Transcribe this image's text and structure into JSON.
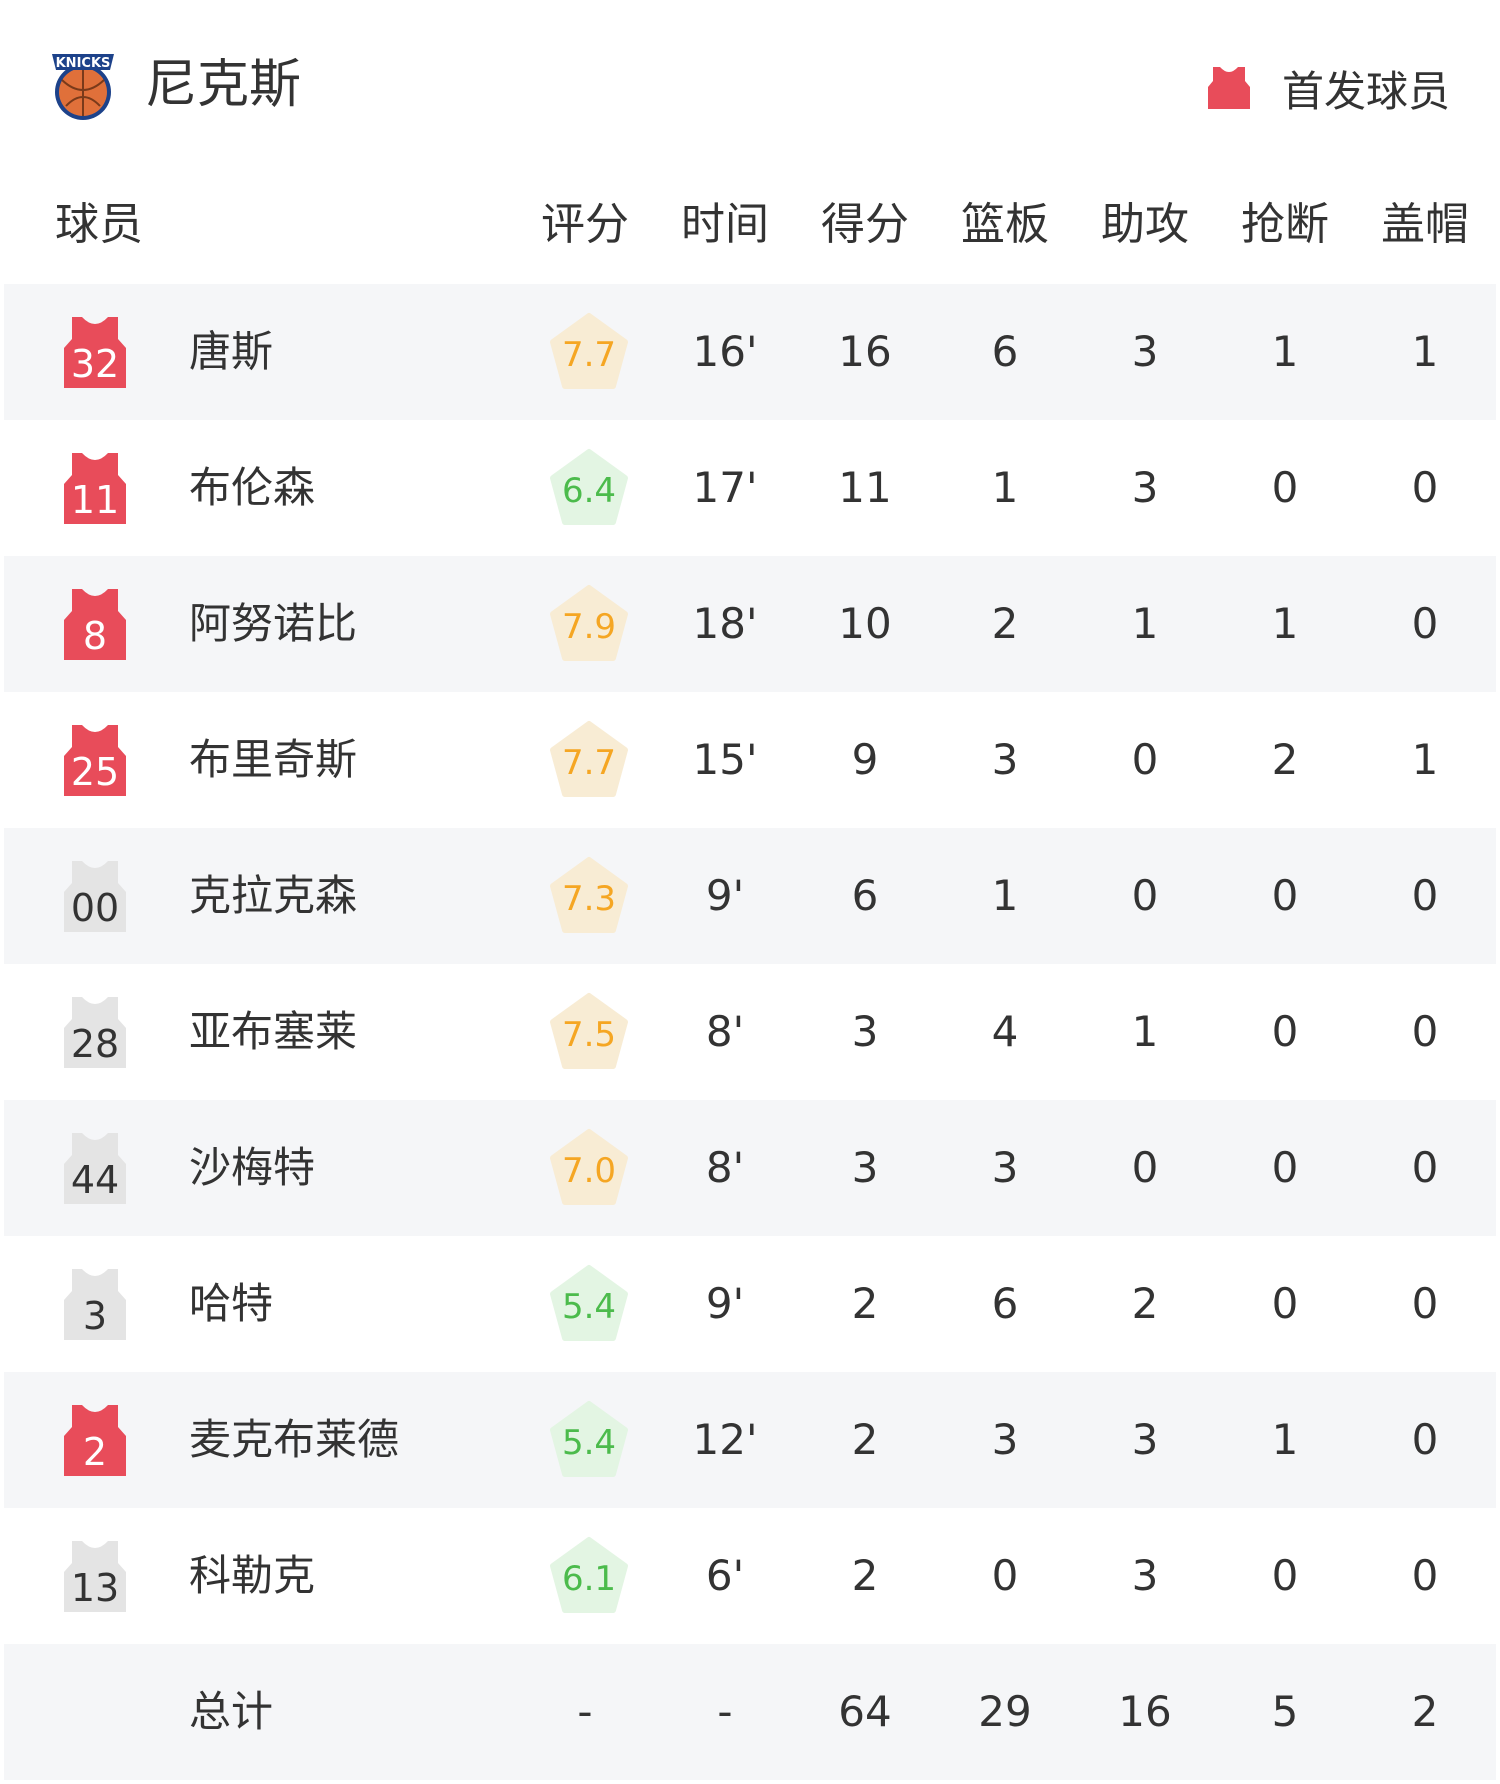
{
  "header": {
    "team": "尼克斯",
    "legend_label": "首发球员",
    "logo_text": "KNICKS"
  },
  "columns": [
    "球员",
    "评分",
    "时间",
    "得分",
    "篮板",
    "助攻",
    "抢断",
    "盖帽"
  ],
  "colors": {
    "starter": "#e84c5a",
    "bench": "#e4e4e4",
    "rating_high_bg": "#f8ecd4",
    "rating_high_text": "#f5a623",
    "rating_low_bg": "#e3f5e3",
    "rating_low_text": "#4cbb4c"
  },
  "players": [
    {
      "number": "32",
      "name": "唐斯",
      "starter": true,
      "rating": "7.7",
      "tier": "high",
      "min": "16'",
      "pts": "16",
      "reb": "6",
      "ast": "3",
      "stl": "1",
      "blk": "1"
    },
    {
      "number": "11",
      "name": "布伦森",
      "starter": true,
      "rating": "6.4",
      "tier": "low",
      "min": "17'",
      "pts": "11",
      "reb": "1",
      "ast": "3",
      "stl": "0",
      "blk": "0"
    },
    {
      "number": "8",
      "name": "阿努诺比",
      "starter": true,
      "rating": "7.9",
      "tier": "high",
      "min": "18'",
      "pts": "10",
      "reb": "2",
      "ast": "1",
      "stl": "1",
      "blk": "0"
    },
    {
      "number": "25",
      "name": "布里奇斯",
      "starter": true,
      "rating": "7.7",
      "tier": "high",
      "min": "15'",
      "pts": "9",
      "reb": "3",
      "ast": "0",
      "stl": "2",
      "blk": "1"
    },
    {
      "number": "00",
      "name": "克拉克森",
      "starter": false,
      "rating": "7.3",
      "tier": "high",
      "min": "9'",
      "pts": "6",
      "reb": "1",
      "ast": "0",
      "stl": "0",
      "blk": "0"
    },
    {
      "number": "28",
      "name": "亚布塞莱",
      "starter": false,
      "rating": "7.5",
      "tier": "high",
      "min": "8'",
      "pts": "3",
      "reb": "4",
      "ast": "1",
      "stl": "0",
      "blk": "0"
    },
    {
      "number": "44",
      "name": "沙梅特",
      "starter": false,
      "rating": "7.0",
      "tier": "high",
      "min": "8'",
      "pts": "3",
      "reb": "3",
      "ast": "0",
      "stl": "0",
      "blk": "0"
    },
    {
      "number": "3",
      "name": "哈特",
      "starter": false,
      "rating": "5.4",
      "tier": "low",
      "min": "9'",
      "pts": "2",
      "reb": "6",
      "ast": "2",
      "stl": "0",
      "blk": "0"
    },
    {
      "number": "2",
      "name": "麦克布莱德",
      "starter": true,
      "rating": "5.4",
      "tier": "low",
      "min": "12'",
      "pts": "2",
      "reb": "3",
      "ast": "3",
      "stl": "1",
      "blk": "0"
    },
    {
      "number": "13",
      "name": "科勒克",
      "starter": false,
      "rating": "6.1",
      "tier": "low",
      "min": "6'",
      "pts": "2",
      "reb": "0",
      "ast": "3",
      "stl": "0",
      "blk": "0"
    }
  ],
  "total": {
    "label": "总计",
    "rating": "-",
    "min": "-",
    "pts": "64",
    "reb": "29",
    "ast": "16",
    "stl": "5",
    "blk": "2"
  }
}
